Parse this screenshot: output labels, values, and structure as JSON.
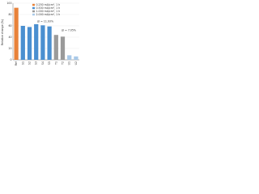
{
  "chart_data": {
    "type": "bar",
    "y_label": "Relative change (%)",
    "categories": [
      "Ref",
      "S1",
      "S2",
      "S3",
      "S4",
      "S5",
      "T1",
      "T2",
      "U1",
      "U2"
    ],
    "series": [
      {
        "name": "0.250 mA/cm², 1 h",
        "color": "#e8823a",
        "values": [
          92,
          null,
          null,
          null,
          null,
          null,
          null,
          null,
          null,
          null
        ]
      },
      {
        "name": "0.500 mA/cm², 1 h",
        "color": "#4a8fd0",
        "values": [
          null,
          60,
          58,
          63,
          61,
          59,
          null,
          null,
          null,
          null
        ]
      },
      {
        "name": "1.000 mA/cm², 1 h",
        "color": "#9a9a9a",
        "values": [
          null,
          null,
          null,
          null,
          null,
          null,
          44,
          41,
          null,
          null
        ]
      },
      {
        "name": "2.000 mA/cm², 1 h",
        "color": "#a9c9e8",
        "values": [
          null,
          null,
          null,
          null,
          null,
          null,
          null,
          null,
          8,
          6
        ]
      }
    ],
    "annotations": [
      "ΔI = 11.93%",
      "ΔI = 7.05%"
    ],
    "ylim": [
      0,
      100
    ],
    "yticks": [
      0,
      20,
      40,
      60,
      80,
      100
    ],
    "grid": true
  }
}
